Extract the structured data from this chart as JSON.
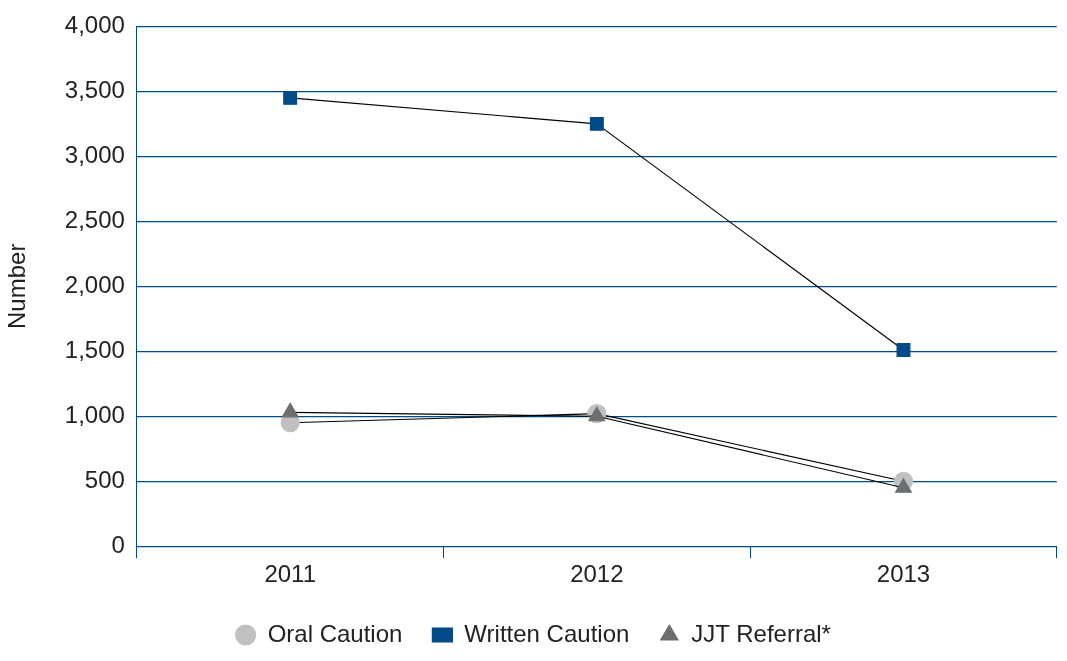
{
  "chart_data": {
    "type": "line",
    "ylabel": "Number",
    "categories": [
      "2011",
      "2012",
      "2013"
    ],
    "series": [
      {
        "name": "Oral Caution",
        "color": "#c0c0c0",
        "marker": "circle",
        "values": [
          950,
          1020,
          500
        ]
      },
      {
        "name": "Written Caution",
        "color": "#004b87",
        "marker": "square",
        "values": [
          3450,
          3250,
          1510
        ]
      },
      {
        "name": "JJT Referral*",
        "color": "#6d6e70",
        "marker": "triangle",
        "values": [
          1030,
          1000,
          450
        ]
      }
    ],
    "ylim": [
      0,
      4000
    ],
    "yticks": [
      0,
      {
        "value": 500,
        "label": "500"
      },
      {
        "value": 1000,
        "label": "1,000"
      },
      {
        "value": 1500,
        "label": "1,500"
      },
      {
        "value": 2000,
        "label": "2,000"
      },
      {
        "value": 2500,
        "label": "2,500"
      },
      {
        "value": 3000,
        "label": "3,000"
      },
      {
        "value": 3500,
        "label": "3,500"
      },
      {
        "value": 4000,
        "label": "4,000"
      }
    ],
    "grid": "y",
    "legend": "bottom"
  }
}
